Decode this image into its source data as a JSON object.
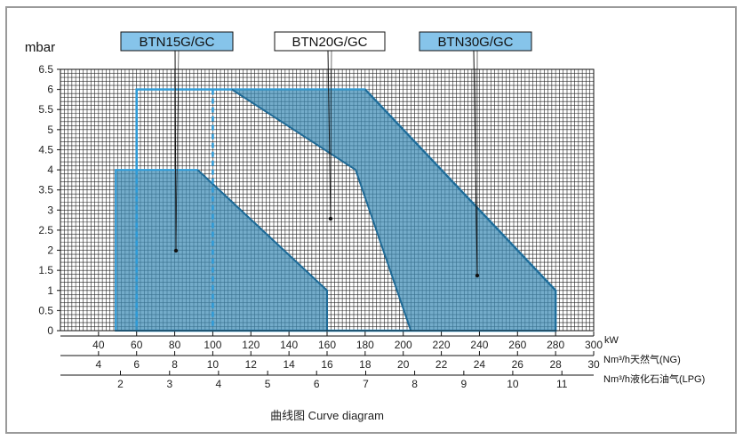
{
  "chart_data": {
    "type": "area",
    "title": "",
    "ylabel": "mbar",
    "ylim": [
      0,
      6.5
    ],
    "y_ticks": [
      "0",
      "0.5",
      "1",
      "1.5",
      "2",
      "2.5",
      "3",
      "3.5",
      "4",
      "4.5",
      "5",
      "5.5",
      "6",
      "6.5"
    ],
    "xlim": [
      20,
      300
    ],
    "axes": [
      {
        "unit": "kW",
        "ticks": [
          "40",
          "60",
          "80",
          "100",
          "120",
          "140",
          "160",
          "180",
          "200",
          "220",
          "240",
          "260",
          "280",
          "300"
        ],
        "kw": [
          40,
          60,
          80,
          100,
          120,
          140,
          160,
          180,
          200,
          220,
          240,
          260,
          280,
          300
        ]
      },
      {
        "unit": "Nm³/h天然气(NG)",
        "ticks": [
          "4",
          "6",
          "8",
          "10",
          "12",
          "14",
          "16",
          "18",
          "20",
          "22",
          "24",
          "26",
          "28",
          "30"
        ],
        "kw": [
          40,
          60,
          80,
          100,
          120,
          140,
          160,
          180,
          200,
          220,
          240,
          260,
          280,
          300
        ]
      },
      {
        "unit": "Nm³/h液化石油气(LPG)",
        "ticks": [
          "2",
          "3",
          "4",
          "5",
          "6",
          "7",
          "8",
          "9",
          "10",
          "11"
        ],
        "kw": [
          51.5,
          77.3,
          103,
          128.8,
          154.5,
          180.3,
          206,
          231.8,
          257.5,
          283.3
        ]
      }
    ],
    "grid": true,
    "series": [
      {
        "name": "BTN15G/GC",
        "x": [
          49,
          49,
          92,
          160,
          160
        ],
        "y": [
          0,
          4,
          4,
          1,
          0
        ],
        "inner_dashed_range": [
          60,
          100
        ],
        "inner_dashed_top": 6
      },
      {
        "name": "BTN20G/GC",
        "x": [
          110,
          175,
          204
        ],
        "y": [
          6,
          4,
          0
        ]
      },
      {
        "name": "BTN30G/GC",
        "x": [
          60,
          60,
          180,
          280,
          280
        ],
        "y": [
          0,
          6,
          6,
          1,
          0
        ]
      }
    ],
    "caption": "曲线图 Curve diagram"
  },
  "colors": {
    "fill": "#3e8cb6",
    "edge": "#1f6a96",
    "outline": "#2e9bd8",
    "label_blue": "#86c4ea",
    "grid": "#222222"
  }
}
